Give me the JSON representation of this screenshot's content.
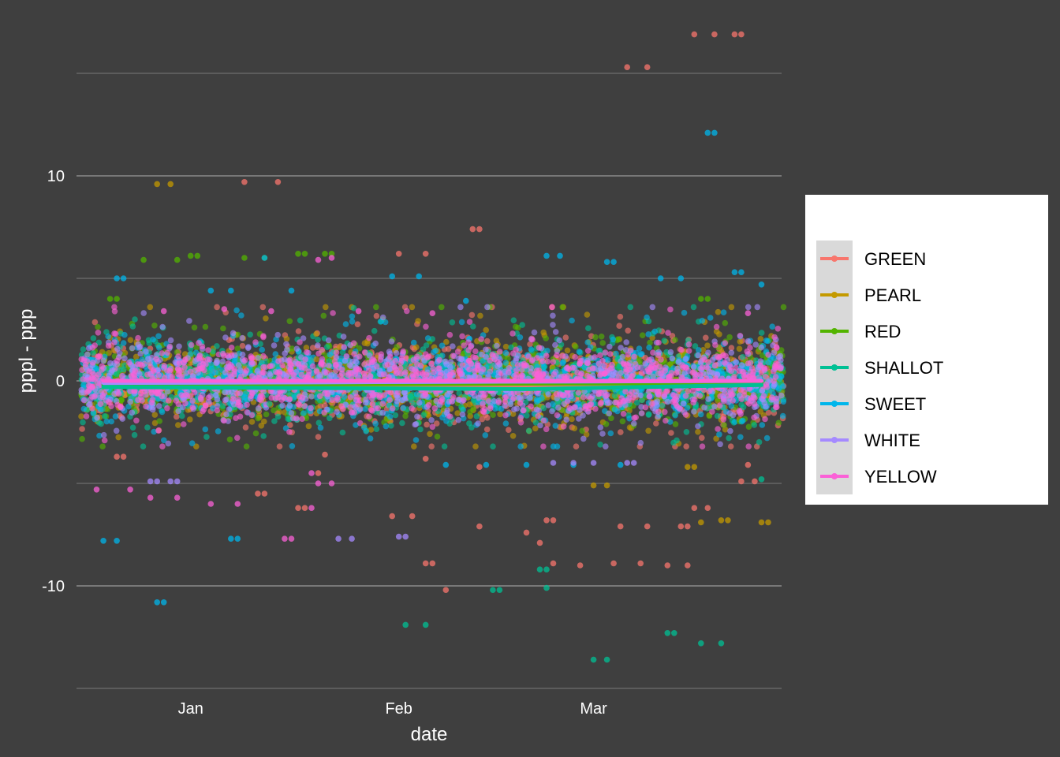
{
  "chart_data": {
    "type": "scatter",
    "title": "",
    "xlabel": "date",
    "ylabel": "pppl - ppp",
    "x_ticks": [
      "Jan",
      "Feb",
      "Mar"
    ],
    "x_tick_dates": [
      "2024-01-01",
      "2024-02-01",
      "2024-03-01"
    ],
    "x_range": [
      "2023-12-15",
      "2024-03-29"
    ],
    "y_ticks": [
      -10,
      0,
      10
    ],
    "ylim": [
      -15,
      18
    ],
    "grid": true,
    "legend_position": "right",
    "cluster_dates": [
      "2023-12-19",
      "2023-12-26",
      "2024-01-02",
      "2024-01-09",
      "2024-01-16",
      "2024-01-23",
      "2024-01-30",
      "2024-02-06",
      "2024-02-13",
      "2024-02-20",
      "2024-02-27",
      "2024-03-05",
      "2024-03-12",
      "2024-03-19",
      "2024-03-26"
    ],
    "series": [
      {
        "name": "GREEN",
        "color": "#F8766D",
        "trend": [
          [
            "2023-12-19",
            -0.3
          ],
          [
            "2024-03-26",
            -0.2
          ]
        ],
        "outliers": [
          [
            "2024-03-06",
            15.3
          ],
          [
            "2024-03-09",
            15.3
          ],
          [
            "2024-03-16",
            16.9
          ],
          [
            "2024-03-19",
            16.9
          ],
          [
            "2024-03-22",
            16.9
          ],
          [
            "2024-03-23",
            16.9
          ],
          [
            "2024-01-09",
            9.7
          ],
          [
            "2024-01-14",
            9.7
          ],
          [
            "2024-02-12",
            7.4
          ],
          [
            "2024-02-13",
            7.4
          ],
          [
            "2024-02-01",
            6.2
          ],
          [
            "2024-02-05",
            6.2
          ],
          [
            "2024-02-05",
            -8.9
          ],
          [
            "2024-02-06",
            -8.9
          ],
          [
            "2024-02-08",
            -10.2
          ],
          [
            "2024-02-24",
            -8.9
          ],
          [
            "2024-02-28",
            -9.0
          ],
          [
            "2024-03-04",
            -8.9
          ],
          [
            "2024-03-08",
            -8.9
          ],
          [
            "2024-03-12",
            -9.0
          ],
          [
            "2024-03-15",
            -9.0
          ],
          [
            "2024-03-05",
            -7.1
          ],
          [
            "2024-03-09",
            -7.1
          ],
          [
            "2024-03-14",
            -7.1
          ],
          [
            "2024-03-15",
            -7.1
          ],
          [
            "2024-02-13",
            -7.1
          ],
          [
            "2024-02-20",
            -7.4
          ],
          [
            "2024-02-22",
            -7.9
          ],
          [
            "2024-02-23",
            -6.8
          ],
          [
            "2024-02-24",
            -6.8
          ],
          [
            "2024-01-31",
            -6.6
          ],
          [
            "2024-02-03",
            -6.6
          ],
          [
            "2024-01-17",
            -6.2
          ],
          [
            "2024-01-18",
            -6.2
          ],
          [
            "2024-03-16",
            -6.2
          ],
          [
            "2024-03-18",
            -6.2
          ],
          [
            "2023-12-21",
            -3.7
          ],
          [
            "2023-12-22",
            -3.7
          ],
          [
            "2024-01-11",
            -5.5
          ],
          [
            "2024-01-12",
            -5.5
          ],
          [
            "2024-03-23",
            -4.9
          ],
          [
            "2024-03-24",
            -4.1
          ],
          [
            "2024-03-25",
            -4.9
          ],
          [
            "2024-02-13",
            -4.2
          ],
          [
            "2024-02-05",
            -3.8
          ],
          [
            "2024-01-20",
            -4.5
          ],
          [
            "2024-01-21",
            -3.6
          ]
        ]
      },
      {
        "name": "PEARL",
        "color": "#C49A00",
        "trend": [
          [
            "2023-12-19",
            -0.1
          ],
          [
            "2024-03-26",
            0.0
          ]
        ],
        "outliers": [
          [
            "2023-12-27",
            9.6
          ],
          [
            "2023-12-29",
            9.6
          ],
          [
            "2024-03-01",
            -5.1
          ],
          [
            "2024-03-03",
            -5.1
          ],
          [
            "2024-03-15",
            -4.2
          ],
          [
            "2024-03-16",
            -4.2
          ],
          [
            "2024-03-20",
            -6.8
          ],
          [
            "2024-03-21",
            -6.8
          ],
          [
            "2024-03-26",
            -6.9
          ],
          [
            "2024-03-27",
            -6.9
          ],
          [
            "2024-03-17",
            -6.9
          ]
        ]
      },
      {
        "name": "RED",
        "color": "#53B400",
        "trend": [
          [
            "2023-12-19",
            -0.2
          ],
          [
            "2024-03-26",
            -0.1
          ]
        ],
        "outliers": [
          [
            "2023-12-25",
            5.9
          ],
          [
            "2023-12-30",
            5.9
          ],
          [
            "2024-01-01",
            6.1
          ],
          [
            "2024-01-02",
            6.1
          ],
          [
            "2024-01-09",
            6.0
          ],
          [
            "2024-01-12",
            6.0
          ],
          [
            "2024-01-17",
            6.2
          ],
          [
            "2024-01-18",
            6.2
          ],
          [
            "2024-01-21",
            6.2
          ],
          [
            "2024-01-22",
            6.2
          ],
          [
            "2023-12-20",
            4.0
          ],
          [
            "2023-12-21",
            4.0
          ],
          [
            "2024-03-17",
            4.0
          ],
          [
            "2024-03-18",
            4.0
          ]
        ]
      },
      {
        "name": "SHALLOT",
        "color": "#00C094",
        "trend": [
          [
            "2023-12-19",
            -0.3
          ],
          [
            "2024-02-20",
            -0.4
          ],
          [
            "2024-03-26",
            -0.2
          ]
        ],
        "outliers": [
          [
            "2024-02-02",
            -11.9
          ],
          [
            "2024-02-05",
            -11.9
          ],
          [
            "2024-02-15",
            -10.2
          ],
          [
            "2024-02-16",
            -10.2
          ],
          [
            "2024-02-23",
            -10.1
          ],
          [
            "2024-03-01",
            -13.6
          ],
          [
            "2024-03-03",
            -13.6
          ],
          [
            "2024-03-12",
            -12.3
          ],
          [
            "2024-03-13",
            -12.3
          ],
          [
            "2024-03-17",
            -12.8
          ],
          [
            "2024-03-20",
            -12.8
          ],
          [
            "2024-02-22",
            -9.2
          ],
          [
            "2024-02-23",
            -9.2
          ],
          [
            "2024-03-26",
            -4.8
          ]
        ]
      },
      {
        "name": "SWEET",
        "color": "#00B6EB",
        "trend": [
          [
            "2023-12-19",
            -0.1
          ],
          [
            "2024-03-26",
            0.0
          ]
        ],
        "outliers": [
          [
            "2024-03-18",
            12.1
          ],
          [
            "2024-03-19",
            12.1
          ],
          [
            "2023-12-27",
            -10.8
          ],
          [
            "2023-12-28",
            -10.8
          ],
          [
            "2023-12-19",
            -7.8
          ],
          [
            "2023-12-21",
            -7.8
          ],
          [
            "2024-01-07",
            -7.7
          ],
          [
            "2024-01-08",
            -7.7
          ],
          [
            "2023-12-21",
            5.0
          ],
          [
            "2023-12-22",
            5.0
          ],
          [
            "2024-01-12",
            6.0
          ],
          [
            "2024-02-23",
            6.1
          ],
          [
            "2024-02-25",
            6.1
          ],
          [
            "2024-03-03",
            5.8
          ],
          [
            "2024-03-04",
            5.8
          ],
          [
            "2024-03-22",
            5.3
          ],
          [
            "2024-03-23",
            5.3
          ],
          [
            "2024-02-11",
            3.9
          ],
          [
            "2024-01-31",
            5.1
          ],
          [
            "2024-02-04",
            5.1
          ],
          [
            "2024-03-11",
            5.0
          ],
          [
            "2024-03-14",
            5.0
          ],
          [
            "2024-01-04",
            4.4
          ],
          [
            "2024-01-07",
            4.4
          ],
          [
            "2024-01-16",
            4.4
          ],
          [
            "2024-03-26",
            4.7
          ],
          [
            "2024-02-08",
            -4.1
          ],
          [
            "2024-02-14",
            -4.1
          ],
          [
            "2024-02-20",
            -4.1
          ],
          [
            "2024-02-27",
            -4.1
          ],
          [
            "2024-03-05",
            -4.1
          ]
        ]
      },
      {
        "name": "WHITE",
        "color": "#A58AFF",
        "trend": [
          [
            "2023-12-19",
            -0.1
          ],
          [
            "2024-03-26",
            0.0
          ]
        ],
        "outliers": [
          [
            "2023-12-26",
            -4.9
          ],
          [
            "2023-12-27",
            -4.9
          ],
          [
            "2023-12-29",
            -4.9
          ],
          [
            "2023-12-30",
            -4.9
          ],
          [
            "2024-01-23",
            -7.7
          ],
          [
            "2024-01-25",
            -7.7
          ],
          [
            "2024-02-01",
            -7.6
          ],
          [
            "2024-02-02",
            -7.6
          ],
          [
            "2024-03-06",
            -4.0
          ],
          [
            "2024-03-07",
            -4.0
          ],
          [
            "2024-02-24",
            -4.0
          ],
          [
            "2024-03-01",
            -4.0
          ],
          [
            "2024-02-27",
            -4.0
          ]
        ]
      },
      {
        "name": "YELLOW",
        "color": "#FB61D7",
        "trend": [
          [
            "2023-12-19",
            0.0
          ],
          [
            "2024-03-26",
            0.0
          ]
        ],
        "outliers": [
          [
            "2023-12-18",
            -5.3
          ],
          [
            "2023-12-23",
            -5.3
          ],
          [
            "2023-12-26",
            -5.7
          ],
          [
            "2023-12-30",
            -5.7
          ],
          [
            "2024-01-04",
            -6.0
          ],
          [
            "2024-01-08",
            -6.0
          ],
          [
            "2024-01-19",
            -4.5
          ],
          [
            "2024-01-20",
            -5.0
          ],
          [
            "2024-01-22",
            -5.0
          ],
          [
            "2024-01-15",
            -7.7
          ],
          [
            "2024-01-16",
            -7.7
          ],
          [
            "2024-01-19",
            -6.2
          ],
          [
            "2024-01-22",
            6.0
          ],
          [
            "2024-01-20",
            5.9
          ],
          [
            "2024-02-06",
            3.3
          ],
          [
            "2024-03-24",
            3.3
          ],
          [
            "2024-01-26",
            3.4
          ],
          [
            "2024-01-13",
            3.4
          ],
          [
            "2024-01-06",
            3.5
          ],
          [
            "2023-12-28",
            3.4
          ]
        ]
      }
    ]
  }
}
